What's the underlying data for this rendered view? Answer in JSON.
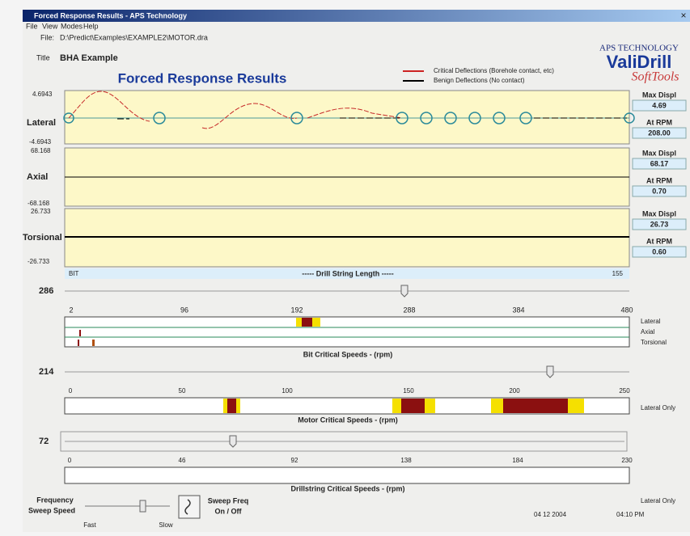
{
  "window": {
    "title": "Forced Response Results - APS Technology",
    "close": "×"
  },
  "menu": [
    "File",
    "View",
    "Modes",
    "Help"
  ],
  "file": {
    "label": "File:",
    "path": "D:\\Predict\\Examples\\EXAMPLE2\\MOTOR.dra"
  },
  "title_field": {
    "label": "Title",
    "value": "BHA Example"
  },
  "heading": "Forced Response Results",
  "legend": [
    {
      "label": "Critical Deflections (Borehole contact, etc)",
      "color": "#cc2222"
    },
    {
      "label": "Benign Deflections (No contact)",
      "color": "#000000"
    }
  ],
  "logo": {
    "company": "APS TECHNOLOGY",
    "product": "ValiDrill",
    "tag": "SoftTools"
  },
  "plots": [
    {
      "name": "Lateral",
      "max": 4.6943,
      "min": -4.6943,
      "max_displ_label": "Max Displ",
      "max_displ": 4.69,
      "rpm_label": "At RPM",
      "rpm": "208.00"
    },
    {
      "name": "Axial",
      "max": 68.168,
      "min": -68.168,
      "max_displ_label": "Max Displ",
      "max_displ": 68.17,
      "rpm_label": "At RPM",
      "rpm": "0.70"
    },
    {
      "name": "Torsional",
      "max": 26.733,
      "min": -26.733,
      "max_displ_label": "Max Displ",
      "max_displ": 26.73,
      "rpm_label": "At RPM",
      "rpm": "0.60"
    }
  ],
  "length_axis": {
    "start": "BIT",
    "label": "----- Drill String Length -----",
    "end": 155
  },
  "bit": {
    "value": 286,
    "ticks": [
      2,
      96,
      192,
      288,
      384,
      480
    ],
    "rows": [
      "Lateral",
      "Axial",
      "Torsional"
    ],
    "caption": "Bit Critical Speeds - (rpm)"
  },
  "motor": {
    "value": 214,
    "ticks": [
      0,
      50,
      100,
      150,
      200,
      250
    ],
    "note": "Lateral Only",
    "caption": "Motor Critical Speeds - (rpm)"
  },
  "drillstring": {
    "value": 72,
    "ticks": [
      0,
      46,
      92,
      138,
      184,
      230
    ],
    "note": "Lateral Only",
    "caption": "Drillstring Critical Speeds - (rpm)"
  },
  "sweep": {
    "label1": "Frequency",
    "label2": "Sweep Speed",
    "fast": "Fast",
    "slow": "Slow",
    "toggle1": "Sweep Freq",
    "toggle2": "On / Off"
  },
  "status": {
    "date": "04 12 2004",
    "time": "04:10 PM"
  }
}
